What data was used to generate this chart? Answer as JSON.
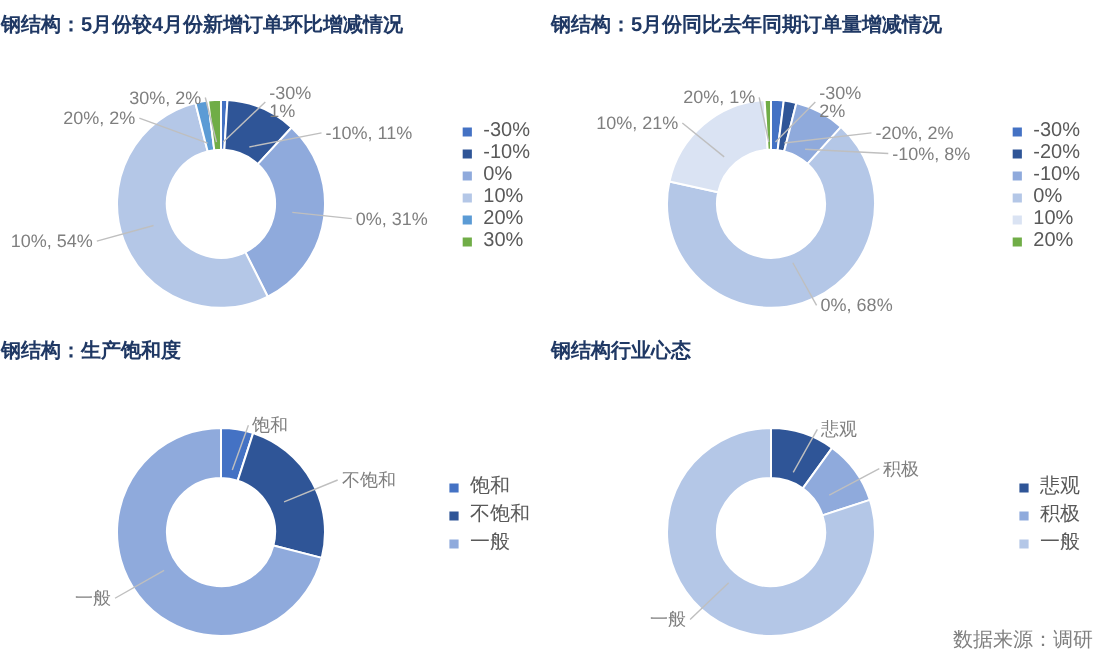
{
  "chart_data": [
    {
      "type": "donut",
      "title": "钢结构：5月份较4月份新增订单环比增减情况",
      "categories": [
        "-30%",
        "-10%",
        "0%",
        "10%",
        "20%",
        "30%"
      ],
      "values": [
        1,
        11,
        31,
        54,
        2,
        2
      ],
      "colors": [
        "#4472c4",
        "#2f5597",
        "#8faadc",
        "#b4c7e7",
        "#5b9bd5",
        "#70ad47"
      ],
      "value_labels": [
        "-30%\n1%",
        "-10%, 11%",
        "0%, 31%",
        "10%, 54%",
        "20%, 2%",
        "30%, 2%"
      ],
      "legend": "right"
    },
    {
      "type": "donut",
      "title": "钢结构：5月份同比去年同期订单量增减情况",
      "categories": [
        "-30%",
        "-20%",
        "-10%",
        "0%",
        "10%",
        "20%"
      ],
      "values": [
        2,
        2,
        8,
        68,
        21,
        1
      ],
      "colors": [
        "#4472c4",
        "#2f5597",
        "#8faadc",
        "#b4c7e7",
        "#dae3f3",
        "#70ad47"
      ],
      "value_labels": [
        "-30%\n2%",
        "-20%, 2%",
        "-10%, 8%",
        "0%, 68%",
        "10%, 21%",
        "20%, 1%"
      ],
      "legend": "right"
    },
    {
      "type": "donut",
      "title": "钢结构：生产饱和度",
      "categories": [
        "饱和",
        "不饱和",
        "一般"
      ],
      "values": [
        5,
        24,
        71
      ],
      "colors": [
        "#4472c4",
        "#2f5597",
        "#8faadc"
      ],
      "legend": "right"
    },
    {
      "type": "donut",
      "title": "钢结构行业心态",
      "categories": [
        "悲观",
        "积极",
        "一般"
      ],
      "values": [
        10,
        10,
        80
      ],
      "colors": [
        "#2f5597",
        "#8faadc",
        "#b4c7e7"
      ],
      "legend": "right",
      "annotations": [
        "数据来源：调研"
      ]
    }
  ]
}
